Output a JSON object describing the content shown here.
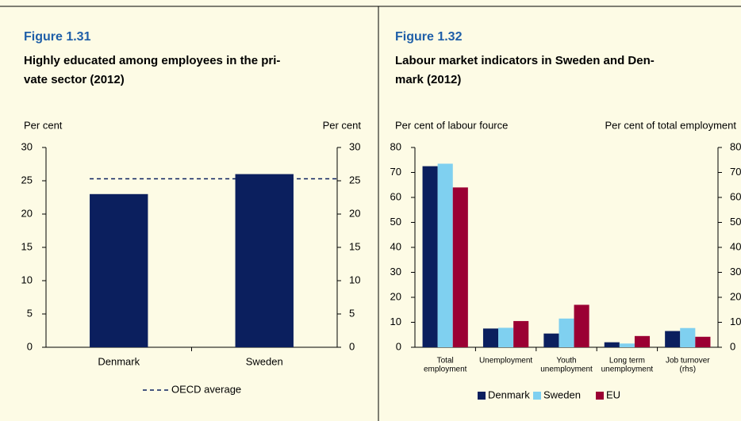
{
  "figures": [
    {
      "label": "Figure 1.31",
      "title": [
        "Highly educated among employees in the pri-",
        "vate sector (2012)"
      ]
    },
    {
      "label": "Figure 1.32",
      "title": [
        "Labour market indicators in Sweden and Den-",
        "mark (2012)"
      ]
    }
  ],
  "chart_data": [
    {
      "type": "bar",
      "y_label": "Per cent",
      "y2_label": "Per cent",
      "categories": [
        [
          "Denmark"
        ],
        [
          "Sweden"
        ]
      ],
      "values": [
        23,
        26
      ],
      "color": "#0b1f5e",
      "reference_line": {
        "name": "OECD average",
        "value": 25.3,
        "color": "#0b1f5e"
      },
      "ylim": [
        0,
        30
      ],
      "yticks": [
        0,
        5,
        10,
        15,
        20,
        25,
        30
      ],
      "y2lim": [
        0,
        30
      ],
      "y2ticks": [
        0,
        5,
        10,
        15,
        20,
        25,
        30
      ],
      "grid": false
    },
    {
      "type": "bar",
      "y_label": "Per cent of labour fource",
      "y2_label": "Per cent of total employment",
      "categories": [
        [
          "Total",
          "employment"
        ],
        [
          "Unemployment"
        ],
        [
          "Youth",
          "unemployment"
        ],
        [
          "Long term",
          "unemployment"
        ],
        [
          "Job turnover",
          "(rhs)"
        ]
      ],
      "series": [
        {
          "name": "Denmark",
          "color": "#0b1f5e",
          "values": [
            72.5,
            7.5,
            5.5,
            2,
            6.5
          ]
        },
        {
          "name": "Sweden",
          "color": "#7fd0f0",
          "values": [
            73.5,
            7.8,
            11.5,
            1.5,
            7.7
          ]
        },
        {
          "name": "EU",
          "color": "#9b0033",
          "values": [
            64,
            10.5,
            17,
            4.5,
            4.2
          ]
        }
      ],
      "ylim": [
        0,
        80
      ],
      "yticks": [
        0,
        10,
        20,
        30,
        40,
        50,
        60,
        70,
        80
      ],
      "y2lim": [
        0,
        80
      ],
      "y2ticks": [
        0,
        10,
        20,
        30,
        40,
        50,
        60,
        70,
        80
      ],
      "grid": false
    }
  ]
}
